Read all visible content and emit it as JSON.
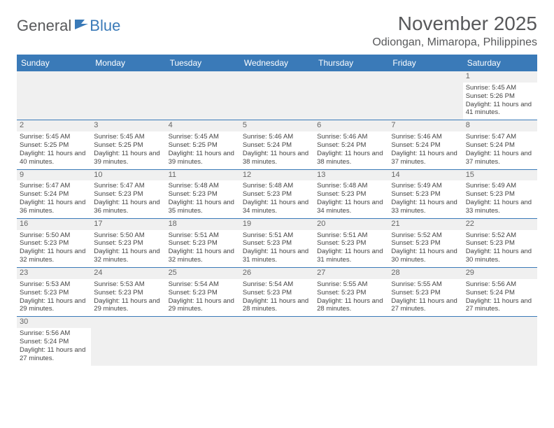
{
  "logo": {
    "general": "General",
    "blue": "Blue"
  },
  "title": "November 2025",
  "location": "Odiongan, Mimaropa, Philippines",
  "colors": {
    "header_bg": "#3a7ab8",
    "header_text": "#ffffff",
    "title_text": "#58595b",
    "body_text": "#444444",
    "daycell_bg": "#f0f0f0",
    "border": "#3a7ab8"
  },
  "typography": {
    "title_fontsize": 28,
    "location_fontsize": 16,
    "dayheader_fontsize": 12,
    "cell_fontsize": 9.5
  },
  "day_headers": [
    "Sunday",
    "Monday",
    "Tuesday",
    "Wednesday",
    "Thursday",
    "Friday",
    "Saturday"
  ],
  "weeks": [
    [
      {
        "empty": true
      },
      {
        "empty": true
      },
      {
        "empty": true
      },
      {
        "empty": true
      },
      {
        "empty": true
      },
      {
        "empty": true
      },
      {
        "day": "1",
        "sunrise": "Sunrise: 5:45 AM",
        "sunset": "Sunset: 5:26 PM",
        "daylight": "Daylight: 11 hours and 41 minutes."
      }
    ],
    [
      {
        "day": "2",
        "sunrise": "Sunrise: 5:45 AM",
        "sunset": "Sunset: 5:25 PM",
        "daylight": "Daylight: 11 hours and 40 minutes."
      },
      {
        "day": "3",
        "sunrise": "Sunrise: 5:45 AM",
        "sunset": "Sunset: 5:25 PM",
        "daylight": "Daylight: 11 hours and 39 minutes."
      },
      {
        "day": "4",
        "sunrise": "Sunrise: 5:45 AM",
        "sunset": "Sunset: 5:25 PM",
        "daylight": "Daylight: 11 hours and 39 minutes."
      },
      {
        "day": "5",
        "sunrise": "Sunrise: 5:46 AM",
        "sunset": "Sunset: 5:24 PM",
        "daylight": "Daylight: 11 hours and 38 minutes."
      },
      {
        "day": "6",
        "sunrise": "Sunrise: 5:46 AM",
        "sunset": "Sunset: 5:24 PM",
        "daylight": "Daylight: 11 hours and 38 minutes."
      },
      {
        "day": "7",
        "sunrise": "Sunrise: 5:46 AM",
        "sunset": "Sunset: 5:24 PM",
        "daylight": "Daylight: 11 hours and 37 minutes."
      },
      {
        "day": "8",
        "sunrise": "Sunrise: 5:47 AM",
        "sunset": "Sunset: 5:24 PM",
        "daylight": "Daylight: 11 hours and 37 minutes."
      }
    ],
    [
      {
        "day": "9",
        "sunrise": "Sunrise: 5:47 AM",
        "sunset": "Sunset: 5:24 PM",
        "daylight": "Daylight: 11 hours and 36 minutes."
      },
      {
        "day": "10",
        "sunrise": "Sunrise: 5:47 AM",
        "sunset": "Sunset: 5:23 PM",
        "daylight": "Daylight: 11 hours and 36 minutes."
      },
      {
        "day": "11",
        "sunrise": "Sunrise: 5:48 AM",
        "sunset": "Sunset: 5:23 PM",
        "daylight": "Daylight: 11 hours and 35 minutes."
      },
      {
        "day": "12",
        "sunrise": "Sunrise: 5:48 AM",
        "sunset": "Sunset: 5:23 PM",
        "daylight": "Daylight: 11 hours and 34 minutes."
      },
      {
        "day": "13",
        "sunrise": "Sunrise: 5:48 AM",
        "sunset": "Sunset: 5:23 PM",
        "daylight": "Daylight: 11 hours and 34 minutes."
      },
      {
        "day": "14",
        "sunrise": "Sunrise: 5:49 AM",
        "sunset": "Sunset: 5:23 PM",
        "daylight": "Daylight: 11 hours and 33 minutes."
      },
      {
        "day": "15",
        "sunrise": "Sunrise: 5:49 AM",
        "sunset": "Sunset: 5:23 PM",
        "daylight": "Daylight: 11 hours and 33 minutes."
      }
    ],
    [
      {
        "day": "16",
        "sunrise": "Sunrise: 5:50 AM",
        "sunset": "Sunset: 5:23 PM",
        "daylight": "Daylight: 11 hours and 32 minutes."
      },
      {
        "day": "17",
        "sunrise": "Sunrise: 5:50 AM",
        "sunset": "Sunset: 5:23 PM",
        "daylight": "Daylight: 11 hours and 32 minutes."
      },
      {
        "day": "18",
        "sunrise": "Sunrise: 5:51 AM",
        "sunset": "Sunset: 5:23 PM",
        "daylight": "Daylight: 11 hours and 32 minutes."
      },
      {
        "day": "19",
        "sunrise": "Sunrise: 5:51 AM",
        "sunset": "Sunset: 5:23 PM",
        "daylight": "Daylight: 11 hours and 31 minutes."
      },
      {
        "day": "20",
        "sunrise": "Sunrise: 5:51 AM",
        "sunset": "Sunset: 5:23 PM",
        "daylight": "Daylight: 11 hours and 31 minutes."
      },
      {
        "day": "21",
        "sunrise": "Sunrise: 5:52 AM",
        "sunset": "Sunset: 5:23 PM",
        "daylight": "Daylight: 11 hours and 30 minutes."
      },
      {
        "day": "22",
        "sunrise": "Sunrise: 5:52 AM",
        "sunset": "Sunset: 5:23 PM",
        "daylight": "Daylight: 11 hours and 30 minutes."
      }
    ],
    [
      {
        "day": "23",
        "sunrise": "Sunrise: 5:53 AM",
        "sunset": "Sunset: 5:23 PM",
        "daylight": "Daylight: 11 hours and 29 minutes."
      },
      {
        "day": "24",
        "sunrise": "Sunrise: 5:53 AM",
        "sunset": "Sunset: 5:23 PM",
        "daylight": "Daylight: 11 hours and 29 minutes."
      },
      {
        "day": "25",
        "sunrise": "Sunrise: 5:54 AM",
        "sunset": "Sunset: 5:23 PM",
        "daylight": "Daylight: 11 hours and 29 minutes."
      },
      {
        "day": "26",
        "sunrise": "Sunrise: 5:54 AM",
        "sunset": "Sunset: 5:23 PM",
        "daylight": "Daylight: 11 hours and 28 minutes."
      },
      {
        "day": "27",
        "sunrise": "Sunrise: 5:55 AM",
        "sunset": "Sunset: 5:23 PM",
        "daylight": "Daylight: 11 hours and 28 minutes."
      },
      {
        "day": "28",
        "sunrise": "Sunrise: 5:55 AM",
        "sunset": "Sunset: 5:23 PM",
        "daylight": "Daylight: 11 hours and 27 minutes."
      },
      {
        "day": "29",
        "sunrise": "Sunrise: 5:56 AM",
        "sunset": "Sunset: 5:24 PM",
        "daylight": "Daylight: 11 hours and 27 minutes."
      }
    ],
    [
      {
        "day": "30",
        "sunrise": "Sunrise: 5:56 AM",
        "sunset": "Sunset: 5:24 PM",
        "daylight": "Daylight: 11 hours and 27 minutes."
      },
      {
        "empty": true
      },
      {
        "empty": true
      },
      {
        "empty": true
      },
      {
        "empty": true
      },
      {
        "empty": true
      },
      {
        "empty": true
      }
    ]
  ]
}
